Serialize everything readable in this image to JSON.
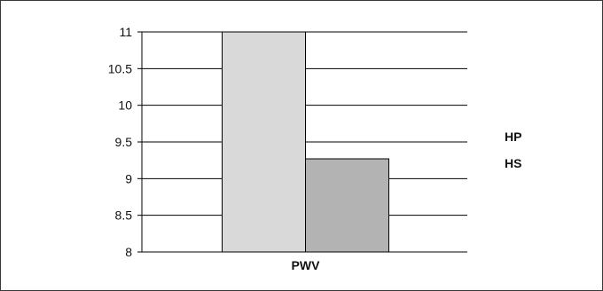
{
  "chart_data": {
    "type": "bar",
    "categories": [
      "PWV"
    ],
    "series": [
      {
        "name": "HP",
        "values": [
          11.0
        ],
        "color": "#d9d9d9"
      },
      {
        "name": "HS",
        "values": [
          9.27
        ],
        "color": "#b3b3b3"
      }
    ],
    "ylim": [
      8,
      11
    ],
    "yticks": [
      "8",
      "8.5",
      "9",
      "9.5",
      "10",
      "10.5",
      "11"
    ],
    "grid": true,
    "legend_position": "right"
  }
}
